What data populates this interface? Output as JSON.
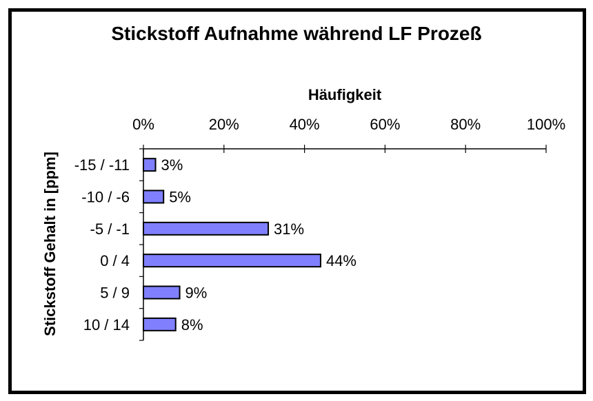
{
  "chart_data": {
    "type": "bar",
    "orientation": "horizontal",
    "title": "Stickstoff Aufnahme während LF Prozeß",
    "xlabel": "Häufigkeit",
    "ylabel": "Stickstoff Gehalt in [ppm]",
    "categories": [
      "-15 / -11",
      "-10 / -6",
      "-5 / -1",
      "0 / 4",
      "5 / 9",
      "10 / 14"
    ],
    "values": [
      3,
      5,
      31,
      44,
      9,
      8
    ],
    "data_labels": [
      "3%",
      "5%",
      "31%",
      "44%",
      "9%",
      "8%"
    ],
    "xlim": [
      0,
      100
    ],
    "x_ticks": [
      0,
      20,
      40,
      60,
      80,
      100
    ],
    "x_tick_labels": [
      "0%",
      "20%",
      "40%",
      "60%",
      "80%",
      "100%"
    ],
    "x_axis_position": "top",
    "grid": false,
    "legend": "none",
    "colors": {
      "bar_fill": "#8080ff",
      "bar_stroke": "#000000",
      "frame": "#000000"
    }
  }
}
